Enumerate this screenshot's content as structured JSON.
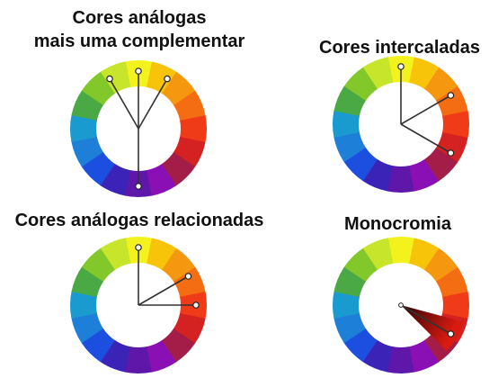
{
  "titles": {
    "analogous_complement_line1": "Cores análogas",
    "analogous_complement_line2": "mais uma complementar",
    "interleaved": "Cores intercaladas",
    "related_analogous": "Cores análogas relacionadas",
    "monochrome": "Monocromia"
  },
  "wheel_colors": [
    "#f4f21c",
    "#f8c40a",
    "#f6980f",
    "#f46d12",
    "#ef3b17",
    "#d42121",
    "#a31d48",
    "#8a10b5",
    "#5e17a8",
    "#3c23b8",
    "#1c4fdf",
    "#1e7fd8",
    "#1a9bd0",
    "#4aa944",
    "#82c82a",
    "#c7e52a"
  ],
  "wheels": [
    {
      "name": "analogous-plus-complement",
      "markers": [
        -30,
        0,
        30,
        180
      ]
    },
    {
      "name": "interleaved",
      "markers": [
        0,
        60,
        120
      ]
    },
    {
      "name": "related-analogous",
      "markers": [
        0,
        60,
        90
      ]
    },
    {
      "name": "monochrome",
      "markers": [
        120
      ],
      "wedge": {
        "from": 105,
        "to": 135,
        "color_near": "#d91a10",
        "color_center": "#2a0505"
      }
    }
  ]
}
